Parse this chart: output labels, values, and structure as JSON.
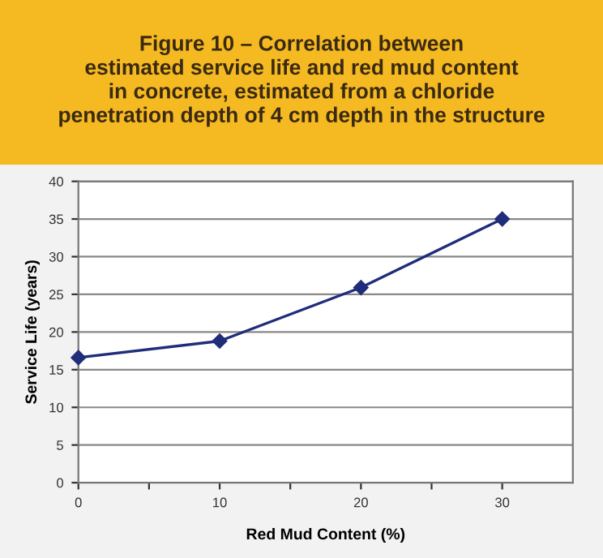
{
  "chart_data": {
    "type": "line",
    "title": "Figure 10 – Correlation between\nestimated service life and red mud content\nin concrete, estimated from a chloride\npenetration depth of 4 cm depth in the structure",
    "xlabel": "Red Mud Content (%)",
    "ylabel": "Service Life (years)",
    "x": [
      0,
      10,
      20,
      30
    ],
    "series": [
      {
        "color": "#1f2d7a",
        "values": [
          16.6,
          18.8,
          25.9,
          35.0
        ]
      }
    ],
    "xlim": [
      0,
      35
    ],
    "xticks": [
      0,
      {
        "value": 5,
        "label": null
      },
      10,
      {
        "value": 15,
        "label": null
      },
      20,
      {
        "value": 25,
        "label": null
      },
      30
    ],
    "ylim": [
      0,
      40
    ],
    "yticks": [
      0,
      5,
      10,
      15,
      20,
      25,
      30,
      35,
      40
    ],
    "grid": "y",
    "marker": "diamond",
    "line_style": "solid",
    "legend": false
  }
}
